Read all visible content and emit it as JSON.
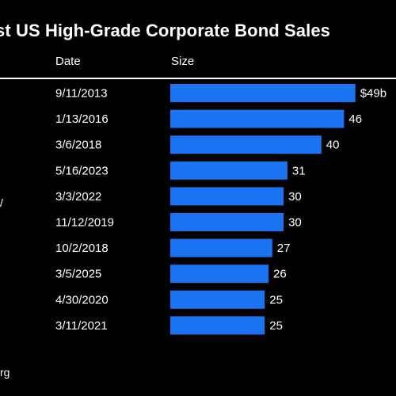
{
  "chart_data": {
    "type": "bar",
    "orientation": "horizontal",
    "title": "st US High-Grade Corporate Bond Sales",
    "column_headers": {
      "date": "Date",
      "size": "Size"
    },
    "categories": [
      "9/11/2013",
      "1/13/2016",
      "3/6/2018",
      "5/16/2023",
      "3/3/2022",
      "11/12/2019",
      "10/2/2018",
      "3/5/2025",
      "4/30/2020",
      "3/11/2021"
    ],
    "values": [
      49,
      46,
      40,
      31,
      30,
      30,
      27,
      26,
      25,
      25
    ],
    "value_labels": [
      "$49b",
      "46",
      "40",
      "31",
      "30",
      "30",
      "27",
      "26",
      "25",
      "25"
    ],
    "bar_color": "#1a73f0",
    "grid": false,
    "legend": "none"
  },
  "fragments": {
    "side": "/",
    "source": "rg"
  }
}
